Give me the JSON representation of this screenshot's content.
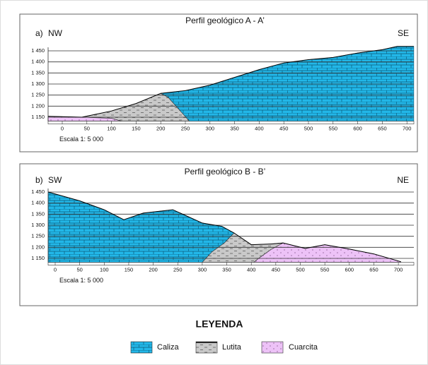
{
  "panels": [
    {
      "label": "a)",
      "title": "Perfil geológico A - A’",
      "left": "NW",
      "right": "SE",
      "yticks": [
        "1 450",
        "1 400",
        "1 350",
        "1 300",
        "1 250",
        "1 200",
        "1 150"
      ],
      "xticks": [
        "0",
        "50",
        "100",
        "150",
        "200",
        "250",
        "300",
        "350",
        "400",
        "450",
        "500",
        "550",
        "600",
        "650",
        "700"
      ],
      "scale": "Escala 1: 5 000"
    },
    {
      "label": "b)",
      "title": "Perfil geológico B - B’",
      "left": "SW",
      "right": "NE",
      "yticks": [
        "1 450",
        "1 400",
        "1 350",
        "1 300",
        "1 250",
        "1 200",
        "1 150"
      ],
      "xticks": [
        "0",
        "50",
        "100",
        "150",
        "200",
        "250",
        "300",
        "350",
        "400",
        "450",
        "500",
        "550",
        "600",
        "650",
        "700"
      ],
      "scale": "Escala 1: 5 000"
    }
  ],
  "legend": {
    "title": "LEYENDA",
    "items": [
      "Caliza",
      "Lutita",
      "Cuarcita"
    ]
  }
}
